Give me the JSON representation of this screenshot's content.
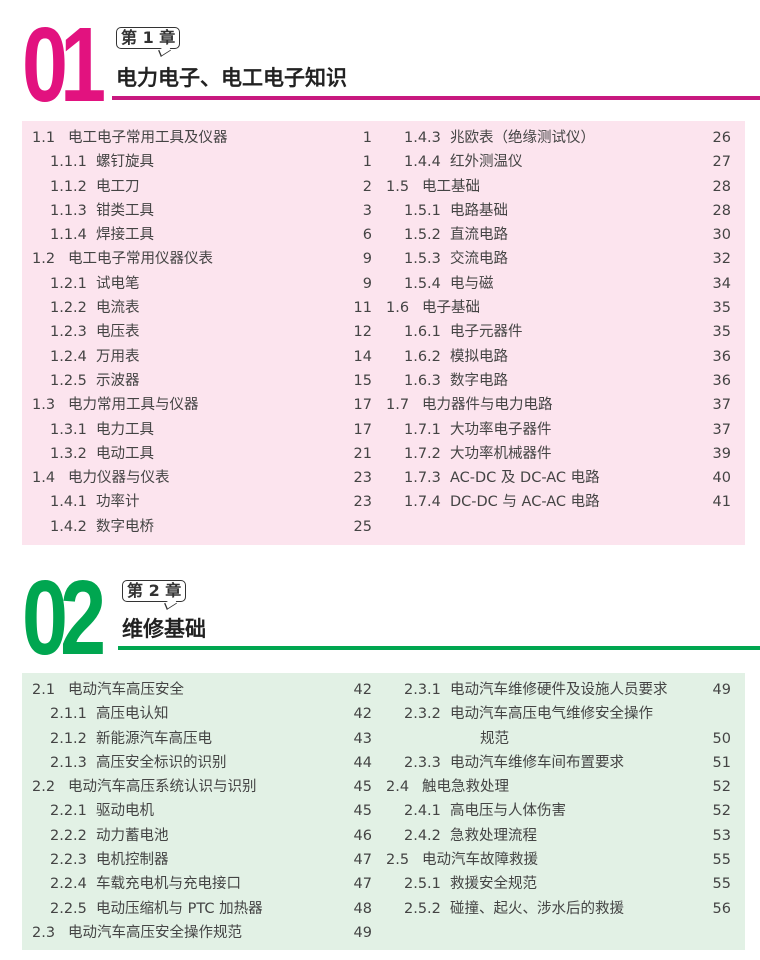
{
  "colors": {
    "ch1": "#e2127f",
    "ch1_bg": "#fce4ee",
    "ch2": "#00a650",
    "ch2_bg": "#e2f1e5"
  },
  "chapters": [
    {
      "number": "01",
      "label": "第 1 章",
      "title": "电力电子、电工电子知识",
      "left": [
        {
          "n": "1.1",
          "t": "电工电子常用工具及仪器",
          "p": "1",
          "l": 1
        },
        {
          "n": "1.1.1",
          "t": "螺钉旋具",
          "p": "1",
          "l": 2
        },
        {
          "n": "1.1.2",
          "t": "电工刀",
          "p": "2",
          "l": 2
        },
        {
          "n": "1.1.3",
          "t": "钳类工具",
          "p": "3",
          "l": 2
        },
        {
          "n": "1.1.4",
          "t": "焊接工具",
          "p": "6",
          "l": 2
        },
        {
          "n": "1.2",
          "t": "电工电子常用仪器仪表",
          "p": "9",
          "l": 1
        },
        {
          "n": "1.2.1",
          "t": "试电笔",
          "p": "9",
          "l": 2
        },
        {
          "n": "1.2.2",
          "t": "电流表",
          "p": "11",
          "l": 2
        },
        {
          "n": "1.2.3",
          "t": "电压表",
          "p": "12",
          "l": 2
        },
        {
          "n": "1.2.4",
          "t": "万用表",
          "p": "14",
          "l": 2
        },
        {
          "n": "1.2.5",
          "t": "示波器",
          "p": "15",
          "l": 2
        },
        {
          "n": "1.3",
          "t": "电力常用工具与仪器",
          "p": "17",
          "l": 1
        },
        {
          "n": "1.3.1",
          "t": "电力工具",
          "p": "17",
          "l": 2
        },
        {
          "n": "1.3.2",
          "t": "电动工具",
          "p": "21",
          "l": 2
        },
        {
          "n": "1.4",
          "t": "电力仪器与仪表",
          "p": "23",
          "l": 1
        },
        {
          "n": "1.4.1",
          "t": "功率计",
          "p": "23",
          "l": 2
        },
        {
          "n": "1.4.2",
          "t": "数字电桥",
          "p": "25",
          "l": 2
        }
      ],
      "right": [
        {
          "n": "1.4.3",
          "t": "兆欧表（绝缘测试仪）",
          "p": "26",
          "l": 2
        },
        {
          "n": "1.4.4",
          "t": "红外测温仪",
          "p": "27",
          "l": 2
        },
        {
          "n": "1.5",
          "t": "电工基础",
          "p": "28",
          "l": 1
        },
        {
          "n": "1.5.1",
          "t": "电路基础",
          "p": "28",
          "l": 2
        },
        {
          "n": "1.5.2",
          "t": "直流电路",
          "p": "30",
          "l": 2
        },
        {
          "n": "1.5.3",
          "t": "交流电路",
          "p": "32",
          "l": 2
        },
        {
          "n": "1.5.4",
          "t": "电与磁",
          "p": "34",
          "l": 2
        },
        {
          "n": "1.6",
          "t": "电子基础",
          "p": "35",
          "l": 1
        },
        {
          "n": "1.6.1",
          "t": "电子元器件",
          "p": "35",
          "l": 2
        },
        {
          "n": "1.6.2",
          "t": "模拟电路",
          "p": "36",
          "l": 2
        },
        {
          "n": "1.6.3",
          "t": "数字电路",
          "p": "36",
          "l": 2
        },
        {
          "n": "1.7",
          "t": "电力器件与电力电路",
          "p": "37",
          "l": 1
        },
        {
          "n": "1.7.1",
          "t": "大功率电子器件",
          "p": "37",
          "l": 2
        },
        {
          "n": "1.7.2",
          "t": "大功率机械器件",
          "p": "39",
          "l": 2
        },
        {
          "n": "1.7.3",
          "t": "AC-DC 及 DC-AC 电路",
          "p": "40",
          "l": 2
        },
        {
          "n": "1.7.4",
          "t": "DC-DC 与 AC-AC 电路",
          "p": "41",
          "l": 2
        }
      ]
    },
    {
      "number": "02",
      "label": "第 2 章",
      "title": "维修基础",
      "left": [
        {
          "n": "2.1",
          "t": "电动汽车高压安全",
          "p": "42",
          "l": 1
        },
        {
          "n": "2.1.1",
          "t": "高压电认知",
          "p": "42",
          "l": 2
        },
        {
          "n": "2.1.2",
          "t": "新能源汽车高压电",
          "p": "43",
          "l": 2
        },
        {
          "n": "2.1.3",
          "t": "高压安全标识的识别",
          "p": "44",
          "l": 2
        },
        {
          "n": "2.2",
          "t": "电动汽车高压系统认识与识别",
          "p": "45",
          "l": 1
        },
        {
          "n": "2.2.1",
          "t": "驱动电机",
          "p": "45",
          "l": 2
        },
        {
          "n": "2.2.2",
          "t": "动力蓄电池",
          "p": "46",
          "l": 2
        },
        {
          "n": "2.2.3",
          "t": "电机控制器",
          "p": "47",
          "l": 2
        },
        {
          "n": "2.2.4",
          "t": "车载充电机与充电接口",
          "p": "47",
          "l": 2
        },
        {
          "n": "2.2.5",
          "t": "电动压缩机与 PTC 加热器",
          "p": "48",
          "l": 2
        },
        {
          "n": "2.3",
          "t": "电动汽车高压安全操作规范",
          "p": "49",
          "l": 1
        }
      ],
      "right": [
        {
          "n": "2.3.1",
          "t": "电动汽车维修硬件及设施人员要求",
          "p": "49",
          "l": 2
        },
        {
          "n": "2.3.2",
          "t": "电动汽车高压电气维修安全操作",
          "p": "",
          "l": 2
        },
        {
          "n": "",
          "t": "规范",
          "p": "50",
          "l": 3
        },
        {
          "n": "2.3.3",
          "t": "电动汽车维修车间布置要求",
          "p": "51",
          "l": 2
        },
        {
          "n": "2.4",
          "t": "触电急救处理",
          "p": "52",
          "l": 1
        },
        {
          "n": "2.4.1",
          "t": "高电压与人体伤害",
          "p": "52",
          "l": 2
        },
        {
          "n": "2.4.2",
          "t": "急救处理流程",
          "p": "53",
          "l": 2
        },
        {
          "n": "2.5",
          "t": "电动汽车故障救援",
          "p": "55",
          "l": 1
        },
        {
          "n": "2.5.1",
          "t": "救援安全规范",
          "p": "55",
          "l": 2
        },
        {
          "n": "2.5.2",
          "t": "碰撞、起火、涉水后的救援",
          "p": "56",
          "l": 2
        }
      ]
    }
  ]
}
